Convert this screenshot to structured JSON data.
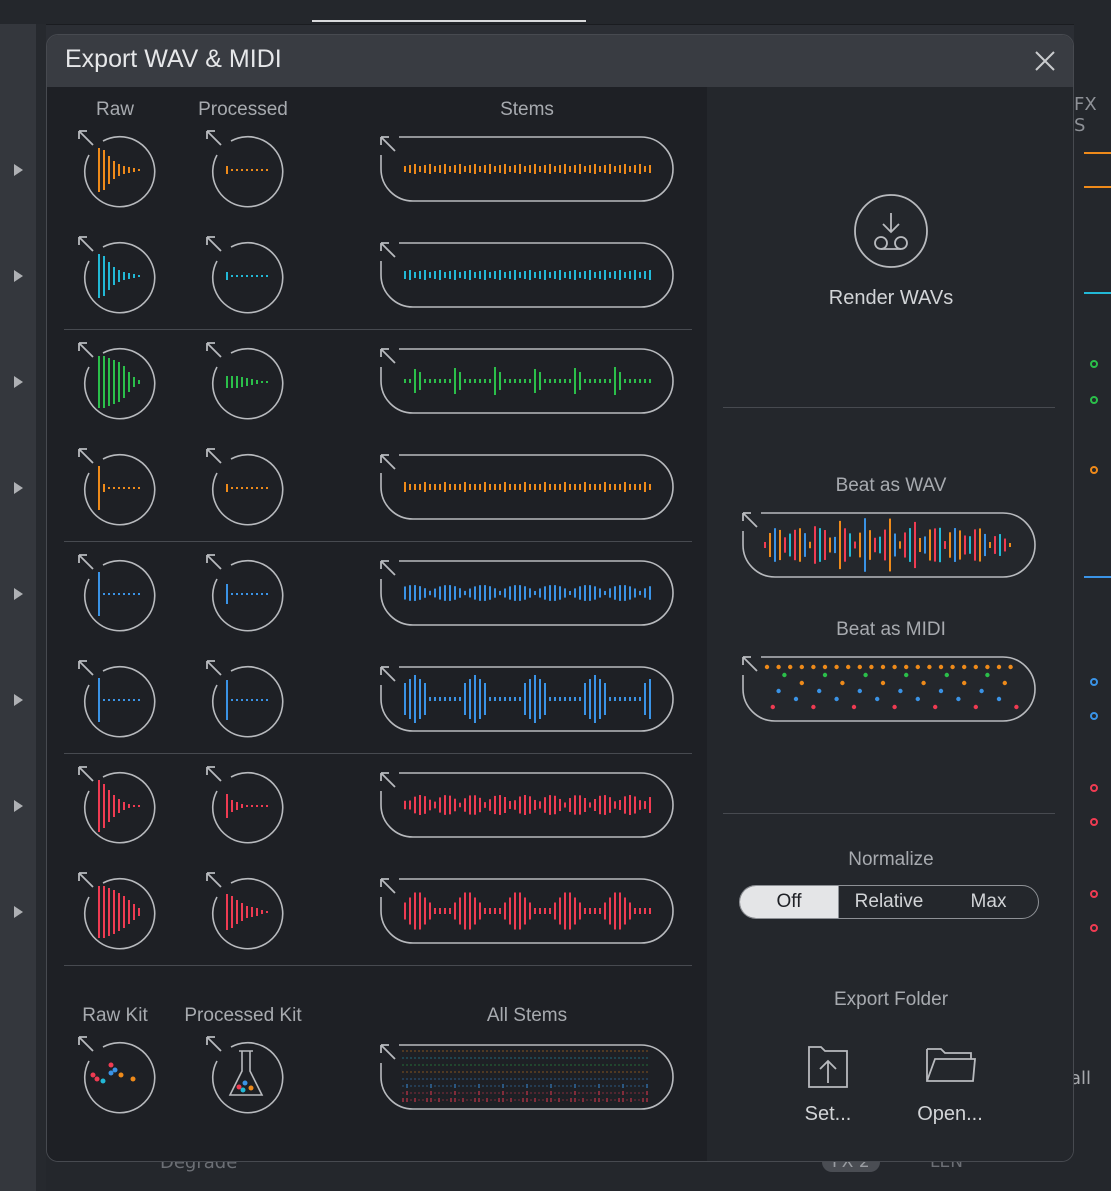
{
  "background": {
    "fx_label": "FX S",
    "degrade_label": "Degrade",
    "fx2_label": "FX 2",
    "len_label": "LEN",
    "all_label": "all"
  },
  "dialog": {
    "title": "Export WAV & MIDI",
    "close_icon": "close-icon"
  },
  "columns": {
    "raw": "Raw",
    "processed": "Processed",
    "stems": "Stems",
    "raw_kit": "Raw Kit",
    "processed_kit": "Processed Kit",
    "all_stems": "All Stems"
  },
  "rows": [
    {
      "color": "#ee8a1a"
    },
    {
      "color": "#22b8d6"
    },
    {
      "color": "#2bbf4a"
    },
    {
      "color": "#ee8a1a"
    },
    {
      "color": "#3a93e6"
    },
    {
      "color": "#3a93e6"
    },
    {
      "color": "#ef3b52"
    },
    {
      "color": "#ef3b52"
    }
  ],
  "render": {
    "label": "Render WAVs",
    "icon": "download-icon"
  },
  "beat_wav": {
    "label": "Beat as WAV"
  },
  "beat_midi": {
    "label": "Beat as MIDI"
  },
  "normalize": {
    "label": "Normalize",
    "options": [
      "Off",
      "Relative",
      "Max"
    ],
    "selected": "Off"
  },
  "export_folder": {
    "label": "Export Folder",
    "set_label": "Set...",
    "open_label": "Open..."
  },
  "colors": {
    "accent_orange": "#ee8a1a",
    "accent_cyan": "#22b8d6",
    "accent_green": "#2bbf4a",
    "accent_blue": "#3a93e6",
    "accent_red": "#ef3b52"
  }
}
